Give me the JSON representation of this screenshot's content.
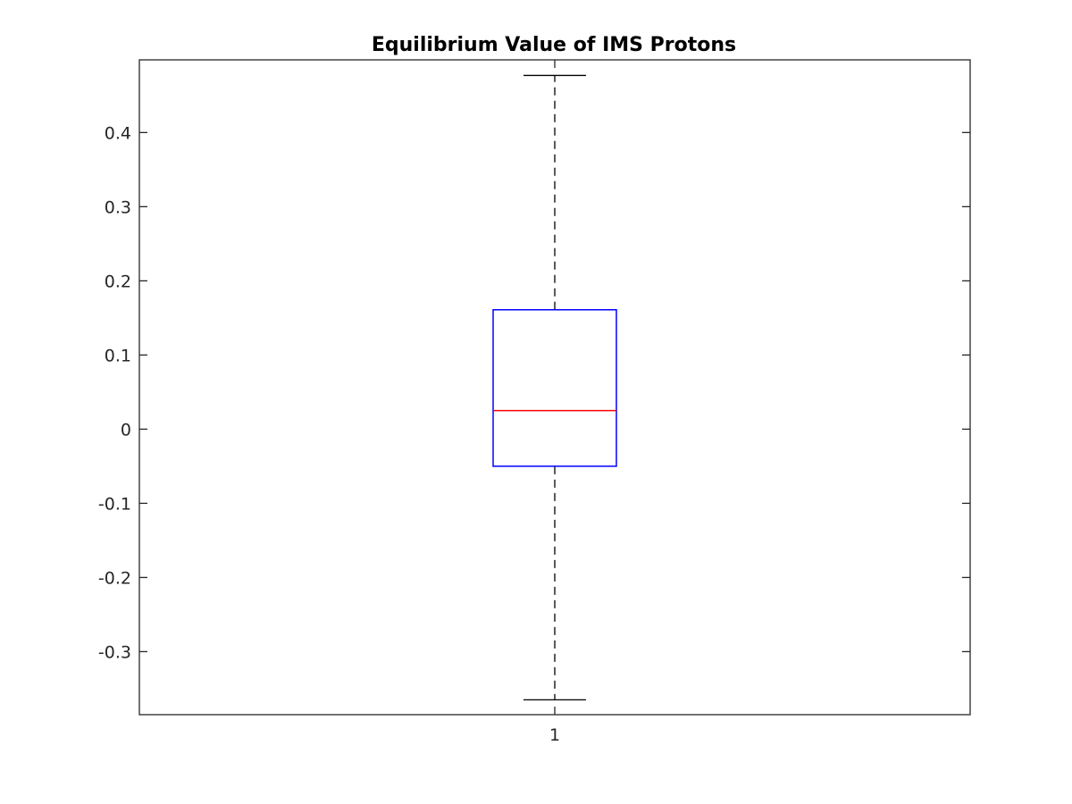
{
  "chart_data": {
    "type": "box",
    "title": "Equilibrium Value of IMS Protons",
    "xlabel": "",
    "ylabel": "",
    "ylim": [
      -0.385,
      0.498
    ],
    "categories": [
      "1"
    ],
    "yticks": [
      -0.3,
      -0.2,
      -0.1,
      0,
      0.1,
      0.2,
      0.3,
      0.4
    ],
    "ytick_labels": [
      "-0.3",
      "-0.2",
      "-0.1",
      "0",
      "0.1",
      "0.2",
      "0.3",
      "0.4"
    ],
    "boxes": [
      {
        "category": "1",
        "whisker_low": -0.365,
        "q1": -0.05,
        "median": 0.025,
        "q3": 0.161,
        "whisker_high": 0.477
      }
    ],
    "grid": false,
    "legend": "none"
  },
  "colors": {
    "box": "#0000ff",
    "median": "#ff0000",
    "whisker": "#000000",
    "axes": "#262626",
    "text": "#262626"
  }
}
